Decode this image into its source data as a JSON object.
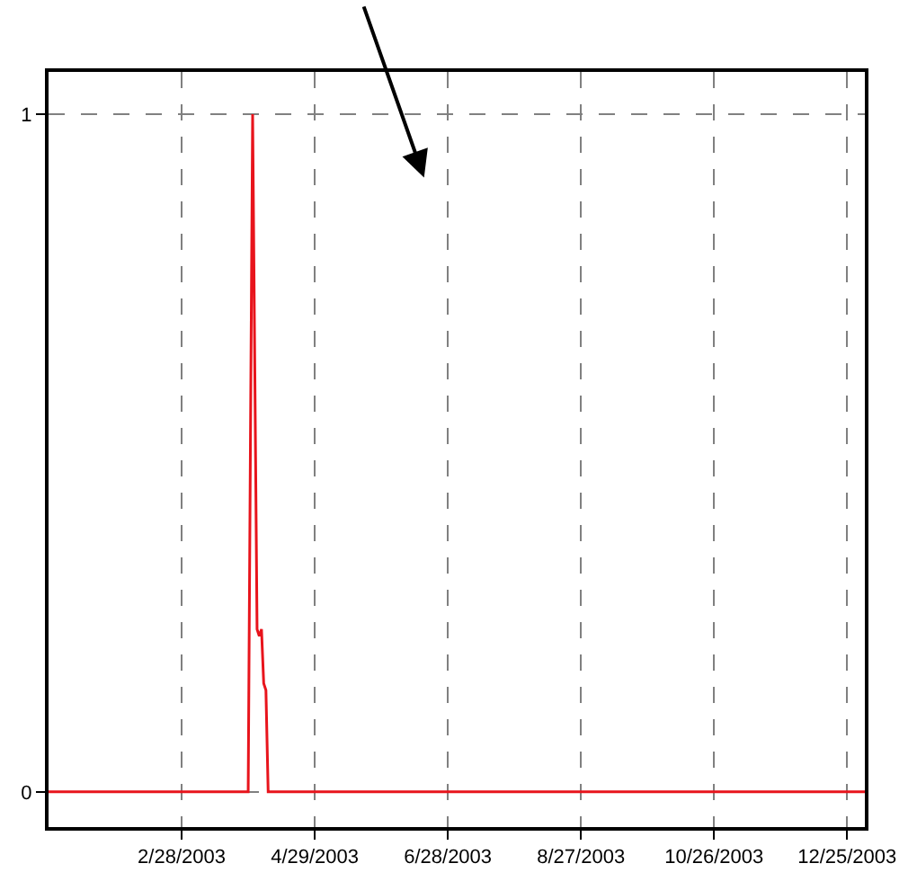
{
  "chart_data": {
    "type": "line",
    "x": [
      "2002-12-30",
      "2003-03-30",
      "2003-03-31",
      "2003-04-01",
      "2003-04-02",
      "2003-04-03",
      "2003-04-04",
      "2003-04-05",
      "2003-04-06",
      "2003-04-07",
      "2003-04-08",
      "2004-01-02"
    ],
    "series": [
      {
        "color": "#e8141c",
        "values": [
          0,
          0,
          0.51,
          1,
          0.62,
          0.24,
          0.23,
          0.24,
          0.16,
          0.15,
          0,
          0
        ]
      }
    ],
    "xlim": [
      "2002-12-30",
      "2004-01-02"
    ],
    "xticks": [
      {
        "value": "2003-02-28",
        "label": "2/28/2003"
      },
      {
        "value": "2003-04-29",
        "label": "4/29/2003"
      },
      {
        "value": "2003-06-28",
        "label": "6/28/2003"
      },
      {
        "value": "2003-08-27",
        "label": "8/27/2003"
      },
      {
        "value": "2003-10-26",
        "label": "10/26/2003"
      },
      {
        "value": "2003-12-25",
        "label": "12/25/2003"
      }
    ],
    "ylim": [
      -0.052,
      1.0625
    ],
    "yticks": [
      0,
      1
    ],
    "grid": true,
    "line_style": "solid"
  }
}
